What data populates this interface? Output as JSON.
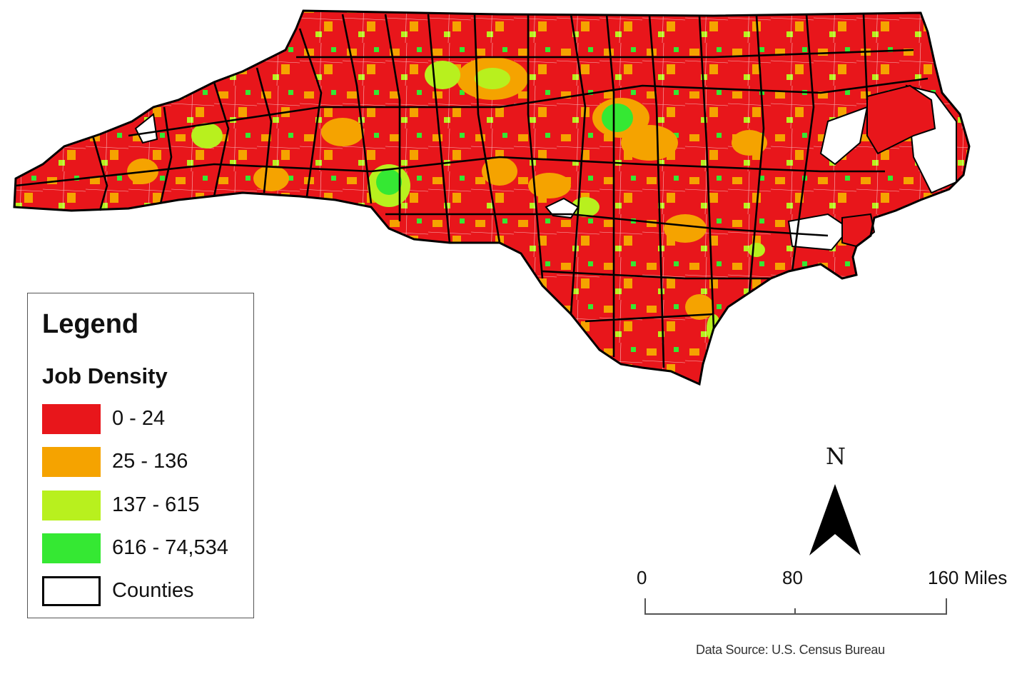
{
  "legend": {
    "title": "Legend",
    "subtitle": "Job Density",
    "items": [
      {
        "label": "0 - 24",
        "color": "#e8161b"
      },
      {
        "label": "25 - 136",
        "color": "#f5a300"
      },
      {
        "label": "137 - 615",
        "color": "#b8f01e"
      },
      {
        "label": "616 - 74,534",
        "color": "#35e833"
      },
      {
        "label": "Counties",
        "color": "#ffffff"
      }
    ]
  },
  "north_arrow": {
    "letter": "N"
  },
  "scale_bar": {
    "labels": [
      "0",
      "80",
      "160 Miles"
    ]
  },
  "source": "Data Source: U.S. Census Bureau"
}
